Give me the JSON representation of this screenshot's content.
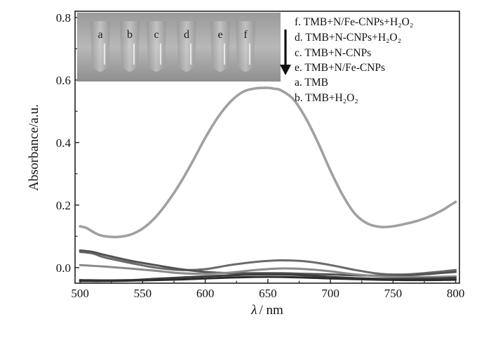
{
  "chart_data": {
    "type": "line",
    "xlabel_symbol": "λ",
    "xlabel_unit": "/ nm",
    "ylabel": "Absorbance/a.u.",
    "xlim": [
      496,
      803
    ],
    "ylim": [
      -0.05,
      0.82
    ],
    "xticks": [
      "500",
      "550",
      "600",
      "650",
      "700",
      "750",
      "800"
    ],
    "yticks": [
      "0.0",
      "0.2",
      "0.4",
      "0.6",
      "0.8"
    ],
    "legend": {
      "placement": "top-right",
      "arrow": "down",
      "entries": [
        "f. TMB+N/Fe-CNPs+H₂O₂",
        "d. TMB+N-CNPs+H₂O₂",
        "c. TMB+N-CNPs",
        "e. TMB+N/Fe-CNPs",
        "a. TMB",
        "b. TMB+H₂O₂"
      ]
    },
    "inset_photo": {
      "placement": "top-left",
      "tube_labels": [
        "a",
        "b",
        "c",
        "d",
        "e",
        "f"
      ]
    },
    "series": [
      {
        "label": "f",
        "color": "#a0a0a0",
        "x": [
          500,
          505,
          510,
          515,
          520,
          530,
          540,
          550,
          560,
          570,
          580,
          590,
          600,
          610,
          620,
          630,
          640,
          650,
          655,
          660,
          670,
          680,
          690,
          700,
          710,
          720,
          730,
          740,
          750,
          760,
          770,
          780,
          790,
          795,
          800
        ],
        "y": [
          0.132,
          0.127,
          0.115,
          0.105,
          0.1,
          0.098,
          0.105,
          0.125,
          0.16,
          0.21,
          0.27,
          0.34,
          0.415,
          0.48,
          0.53,
          0.562,
          0.573,
          0.575,
          0.572,
          0.568,
          0.54,
          0.48,
          0.4,
          0.31,
          0.23,
          0.17,
          0.14,
          0.13,
          0.132,
          0.14,
          0.15,
          0.165,
          0.185,
          0.198,
          0.21
        ]
      },
      {
        "label": "d",
        "color": "#6a6a6a",
        "x": [
          500,
          510,
          520,
          540,
          560,
          580,
          600,
          620,
          640,
          660,
          680,
          700,
          720,
          740,
          760,
          780,
          800
        ],
        "y": [
          0.05,
          0.045,
          0.032,
          0.015,
          0.0,
          -0.008,
          -0.005,
          0.008,
          0.018,
          0.023,
          0.02,
          0.008,
          -0.008,
          -0.02,
          -0.022,
          -0.016,
          -0.008
        ]
      },
      {
        "label": "c",
        "color": "#525252",
        "x": [
          500,
          510,
          520,
          540,
          560,
          580,
          600,
          620,
          640,
          660,
          680,
          700,
          720,
          740,
          760,
          780,
          800
        ],
        "y": [
          0.055,
          0.05,
          0.04,
          0.022,
          0.008,
          -0.005,
          -0.014,
          -0.018,
          -0.018,
          -0.018,
          -0.02,
          -0.022,
          -0.025,
          -0.026,
          -0.025,
          -0.02,
          -0.014
        ]
      },
      {
        "label": "e",
        "color": "#8a8a8a",
        "x": [
          500,
          520,
          540,
          560,
          580,
          600,
          620,
          640,
          660,
          680,
          700,
          720,
          740,
          760,
          780,
          800
        ],
        "y": [
          0.008,
          0.003,
          -0.003,
          -0.01,
          -0.018,
          -0.02,
          -0.016,
          -0.008,
          -0.003,
          -0.005,
          -0.012,
          -0.022,
          -0.028,
          -0.03,
          -0.03,
          -0.028
        ]
      },
      {
        "label": "a",
        "color": "#3e3e3e",
        "x": [
          500,
          520,
          540,
          560,
          580,
          600,
          620,
          640,
          660,
          680,
          700,
          720,
          740,
          760,
          780,
          800
        ],
        "y": [
          -0.04,
          -0.041,
          -0.04,
          -0.036,
          -0.032,
          -0.028,
          -0.025,
          -0.022,
          -0.022,
          -0.025,
          -0.03,
          -0.034,
          -0.036,
          -0.036,
          -0.035,
          -0.033
        ]
      },
      {
        "label": "b",
        "color": "#2c2c2c",
        "x": [
          500,
          520,
          540,
          560,
          580,
          600,
          620,
          640,
          660,
          680,
          700,
          720,
          740,
          760,
          780,
          800
        ],
        "y": [
          -0.043,
          -0.043,
          -0.042,
          -0.04,
          -0.038,
          -0.035,
          -0.032,
          -0.03,
          -0.03,
          -0.032,
          -0.035,
          -0.037,
          -0.039,
          -0.04,
          -0.04,
          -0.039
        ]
      }
    ]
  }
}
